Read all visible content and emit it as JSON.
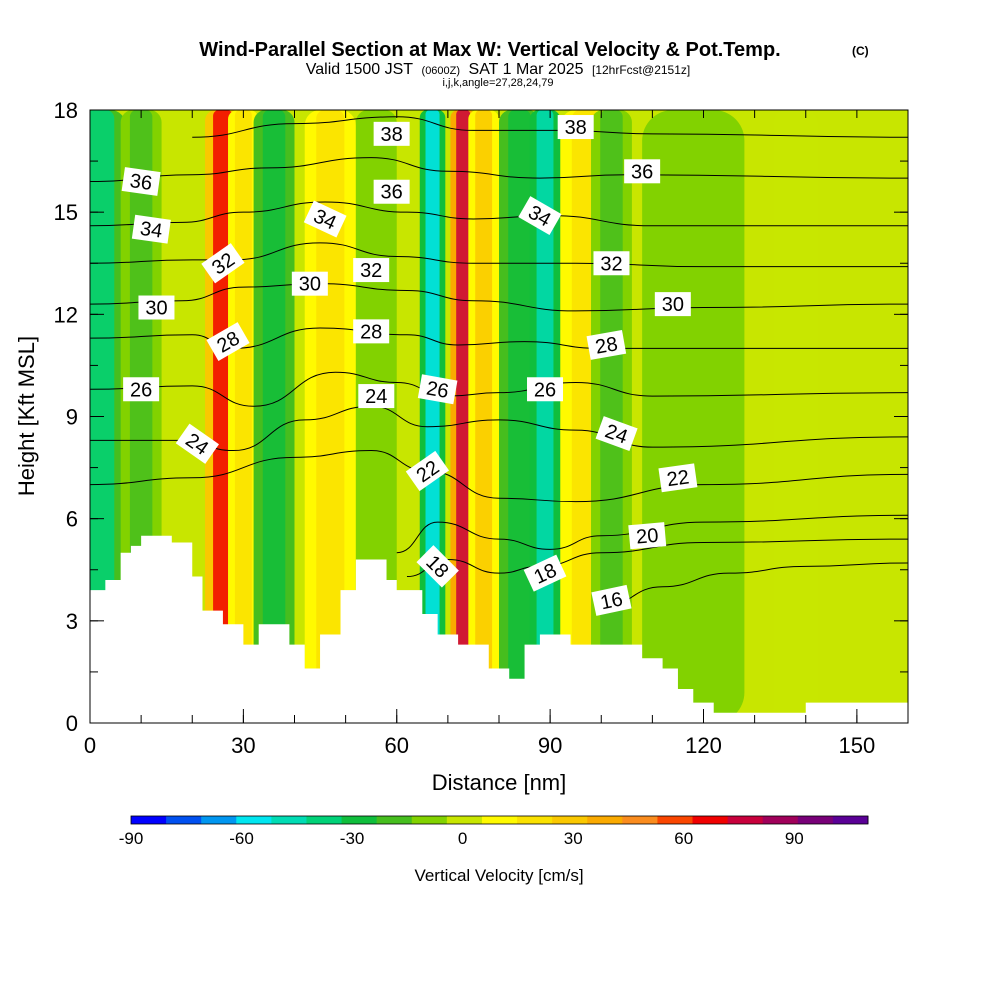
{
  "chart_data": {
    "type": "heatmap",
    "title": "Wind-Parallel Section at Max W: Vertical Velocity & Pot.Temp.",
    "title_mark": "(C)",
    "subtitle": {
      "prefix": "Valid 1500 JST",
      "utc": "(0600Z)",
      "date": "SAT 1 Mar 2025",
      "fcst": "[12hrFcst@2151z]"
    },
    "indices": "i,j,k,angle=27,28,24,79",
    "xlabel": "Distance [nm]",
    "ylabel": "Height [Kft MSL]",
    "xlim": [
      0,
      160
    ],
    "ylim": [
      0,
      18
    ],
    "x_ticks": [
      "0",
      "30",
      "60",
      "90",
      "120",
      "150"
    ],
    "y_ticks": [
      "0",
      "3",
      "6",
      "9",
      "12",
      "15",
      "18"
    ],
    "colorbar": {
      "label": "Vertical Velocity [cm/s]",
      "range": [
        -90,
        110
      ],
      "step": 10,
      "tick_labels": [
        "-90",
        "-60",
        "-30",
        "0",
        "30",
        "60",
        "90"
      ],
      "colors": [
        "#0000ff",
        "#0050f0",
        "#0096f0",
        "#00e6f0",
        "#00dcb4",
        "#00d278",
        "#10be3c",
        "#46be1e",
        "#82d200",
        "#c8e600",
        "#fffa00",
        "#fae100",
        "#fac800",
        "#faaa00",
        "#fa8c1e",
        "#fa4600",
        "#f00000",
        "#c8003c",
        "#a0005a",
        "#780078",
        "#5a0096"
      ]
    },
    "terrain": [
      [
        0,
        3.9
      ],
      [
        3,
        3.9
      ],
      [
        3,
        4.2
      ],
      [
        6,
        4.2
      ],
      [
        6,
        5
      ],
      [
        8,
        5
      ],
      [
        8,
        5.2
      ],
      [
        10,
        5.2
      ],
      [
        10,
        5.5
      ],
      [
        16,
        5.5
      ],
      [
        16,
        5.3
      ],
      [
        20,
        5.3
      ],
      [
        20,
        4.3
      ],
      [
        22,
        4.3
      ],
      [
        22,
        3.3
      ],
      [
        26,
        3.3
      ],
      [
        26,
        2.9
      ],
      [
        30,
        2.9
      ],
      [
        30,
        2.3
      ],
      [
        33,
        2.3
      ],
      [
        33,
        2.9
      ],
      [
        39,
        2.9
      ],
      [
        39,
        2.3
      ],
      [
        42,
        2.3
      ],
      [
        42,
        1.6
      ],
      [
        45,
        1.6
      ],
      [
        45,
        2.6
      ],
      [
        49,
        2.6
      ],
      [
        49,
        3.9
      ],
      [
        52,
        3.9
      ],
      [
        52,
        4.8
      ],
      [
        58,
        4.8
      ],
      [
        58,
        4.2
      ],
      [
        60,
        4.2
      ],
      [
        60,
        3.9
      ],
      [
        65,
        3.9
      ],
      [
        65,
        3.2
      ],
      [
        68,
        3.2
      ],
      [
        68,
        2.6
      ],
      [
        72,
        2.6
      ],
      [
        72,
        2.3
      ],
      [
        78,
        2.3
      ],
      [
        78,
        1.6
      ],
      [
        82,
        1.6
      ],
      [
        82,
        1.3
      ],
      [
        85,
        1.3
      ],
      [
        85,
        2.3
      ],
      [
        88,
        2.3
      ],
      [
        88,
        2.6
      ],
      [
        94,
        2.6
      ],
      [
        94,
        2.3
      ],
      [
        108,
        2.3
      ],
      [
        108,
        1.9
      ],
      [
        112,
        1.9
      ],
      [
        112,
        1.6
      ],
      [
        115,
        1.6
      ],
      [
        115,
        1.0
      ],
      [
        118,
        1.0
      ],
      [
        118,
        0.6
      ],
      [
        122,
        0.6
      ],
      [
        122,
        0.3
      ],
      [
        140,
        0.3
      ],
      [
        140,
        0.6
      ],
      [
        160,
        0.6
      ]
    ],
    "w_bands": [
      {
        "x": 2,
        "w": 5,
        "v": -40
      },
      {
        "x": 10,
        "w": 4,
        "v": -15
      },
      {
        "x": 26,
        "w": 3.5,
        "v": 70
      },
      {
        "x": 30,
        "w": 3,
        "v": 20
      },
      {
        "x": 36,
        "w": 4,
        "v": -25
      },
      {
        "x": 47,
        "w": 5,
        "v": 25
      },
      {
        "x": 56,
        "w": 4,
        "v": -10
      },
      {
        "x": 67,
        "w": 2.5,
        "v": -60
      },
      {
        "x": 73,
        "w": 2.5,
        "v": 80
      },
      {
        "x": 77,
        "w": 3,
        "v": 30
      },
      {
        "x": 84,
        "w": 4,
        "v": -25
      },
      {
        "x": 89,
        "w": 3,
        "v": -50
      },
      {
        "x": 97,
        "w": 5,
        "v": 20
      },
      {
        "x": 102,
        "w": 4,
        "v": -20
      },
      {
        "x": 118,
        "w": 10,
        "v": -5
      },
      {
        "x": 138,
        "w": 8,
        "v": 8
      }
    ],
    "theta_contours": [
      {
        "value": 16,
        "label": "16",
        "points": [
          [
            100,
            3.4
          ],
          [
            112,
            4.0
          ],
          [
            125,
            4.4
          ],
          [
            140,
            4.6
          ],
          [
            160,
            4.7
          ]
        ]
      },
      {
        "value": 18,
        "label": "18",
        "points": [
          [
            62,
            4.3
          ],
          [
            70,
            4.8
          ],
          [
            80,
            4.4
          ],
          [
            88,
            4.6
          ],
          [
            100,
            5.0
          ],
          [
            120,
            5.3
          ],
          [
            160,
            5.4
          ]
        ]
      },
      {
        "value": 20,
        "label": "20",
        "points": [
          [
            60,
            5.0
          ],
          [
            68,
            5.9
          ],
          [
            80,
            5.4
          ],
          [
            90,
            5.1
          ],
          [
            100,
            5.5
          ],
          [
            120,
            5.9
          ],
          [
            160,
            6.1
          ]
        ]
      },
      {
        "value": 22,
        "label": "22",
        "points": [
          [
            0,
            7.0
          ],
          [
            20,
            7.2
          ],
          [
            40,
            7.8
          ],
          [
            55,
            8.0
          ],
          [
            66,
            7.4
          ],
          [
            80,
            6.6
          ],
          [
            95,
            6.5
          ],
          [
            120,
            7.0
          ],
          [
            160,
            7.3
          ]
        ]
      },
      {
        "value": 24,
        "label": "24",
        "points": [
          [
            0,
            8.3
          ],
          [
            18,
            8.3
          ],
          [
            28,
            8.0
          ],
          [
            42,
            8.9
          ],
          [
            55,
            9.3
          ],
          [
            66,
            8.7
          ],
          [
            80,
            8.9
          ],
          [
            95,
            8.6
          ],
          [
            110,
            8.1
          ],
          [
            160,
            8.4
          ]
        ]
      },
      {
        "value": 26,
        "label": "26",
        "points": [
          [
            0,
            9.8
          ],
          [
            20,
            9.9
          ],
          [
            32,
            9.3
          ],
          [
            48,
            10.3
          ],
          [
            60,
            10.0
          ],
          [
            70,
            9.6
          ],
          [
            80,
            9.7
          ],
          [
            95,
            10.0
          ],
          [
            110,
            9.6
          ],
          [
            160,
            9.7
          ]
        ]
      },
      {
        "value": 28,
        "label": "28",
        "points": [
          [
            0,
            11.3
          ],
          [
            20,
            11.4
          ],
          [
            28,
            11.0
          ],
          [
            45,
            11.6
          ],
          [
            62,
            11.4
          ],
          [
            72,
            11.1
          ],
          [
            85,
            11.2
          ],
          [
            100,
            11.0
          ],
          [
            120,
            11.0
          ],
          [
            160,
            11.0
          ]
        ]
      },
      {
        "value": 30,
        "label": "30",
        "points": [
          [
            0,
            12.3
          ],
          [
            18,
            12.4
          ],
          [
            30,
            12.8
          ],
          [
            45,
            12.9
          ],
          [
            62,
            12.7
          ],
          [
            75,
            12.4
          ],
          [
            95,
            12.1
          ],
          [
            120,
            12.2
          ],
          [
            160,
            12.3
          ]
        ]
      },
      {
        "value": 32,
        "label": "32",
        "points": [
          [
            0,
            13.5
          ],
          [
            20,
            13.6
          ],
          [
            28,
            13.6
          ],
          [
            45,
            14.1
          ],
          [
            60,
            13.7
          ],
          [
            75,
            13.5
          ],
          [
            95,
            13.5
          ],
          [
            120,
            13.4
          ],
          [
            160,
            13.4
          ]
        ]
      },
      {
        "value": 34,
        "label": "34",
        "points": [
          [
            0,
            14.6
          ],
          [
            18,
            14.7
          ],
          [
            30,
            15.0
          ],
          [
            46,
            15.3
          ],
          [
            62,
            15.0
          ],
          [
            75,
            14.8
          ],
          [
            90,
            14.9
          ],
          [
            110,
            14.6
          ],
          [
            160,
            14.6
          ]
        ]
      },
      {
        "value": 36,
        "label": "36",
        "points": [
          [
            0,
            15.9
          ],
          [
            20,
            16.1
          ],
          [
            35,
            16.3
          ],
          [
            55,
            16.6
          ],
          [
            70,
            16.2
          ],
          [
            88,
            16.0
          ],
          [
            105,
            16.1
          ],
          [
            160,
            16.0
          ]
        ]
      },
      {
        "value": 38,
        "label": "38",
        "points": [
          [
            20,
            17.2
          ],
          [
            40,
            17.6
          ],
          [
            60,
            17.8
          ],
          [
            75,
            17.4
          ],
          [
            92,
            17.4
          ],
          [
            110,
            17.3
          ],
          [
            160,
            17.2
          ]
        ]
      }
    ],
    "labels": [
      {
        "text": "38",
        "x": 59,
        "y": 17.3,
        "rot": 0
      },
      {
        "text": "38",
        "x": 95,
        "y": 17.5,
        "rot": 0
      },
      {
        "text": "36",
        "x": 10,
        "y": 15.9,
        "rot": 8
      },
      {
        "text": "36",
        "x": 59,
        "y": 15.6,
        "rot": 0
      },
      {
        "text": "36",
        "x": 108,
        "y": 16.2,
        "rot": 0
      },
      {
        "text": "34",
        "x": 12,
        "y": 14.5,
        "rot": 8
      },
      {
        "text": "34",
        "x": 46,
        "y": 14.8,
        "rot": 25
      },
      {
        "text": "34",
        "x": 88,
        "y": 14.9,
        "rot": 30
      },
      {
        "text": "32",
        "x": 26,
        "y": 13.5,
        "rot": -35
      },
      {
        "text": "32",
        "x": 55,
        "y": 13.3,
        "rot": 0
      },
      {
        "text": "32",
        "x": 102,
        "y": 13.5,
        "rot": 0
      },
      {
        "text": "30",
        "x": 13,
        "y": 12.2,
        "rot": 0
      },
      {
        "text": "30",
        "x": 43,
        "y": 12.9,
        "rot": 0
      },
      {
        "text": "30",
        "x": 114,
        "y": 12.3,
        "rot": 0
      },
      {
        "text": "28",
        "x": 27,
        "y": 11.2,
        "rot": -30
      },
      {
        "text": "28",
        "x": 55,
        "y": 11.5,
        "rot": 0
      },
      {
        "text": "28",
        "x": 101,
        "y": 11.1,
        "rot": -10
      },
      {
        "text": "26",
        "x": 10,
        "y": 9.8,
        "rot": 0
      },
      {
        "text": "26",
        "x": 68,
        "y": 9.8,
        "rot": 10
      },
      {
        "text": "26",
        "x": 89,
        "y": 9.8,
        "rot": 0
      },
      {
        "text": "24",
        "x": 21,
        "y": 8.2,
        "rot": 35
      },
      {
        "text": "24",
        "x": 56,
        "y": 9.6,
        "rot": 0
      },
      {
        "text": "24",
        "x": 103,
        "y": 8.5,
        "rot": 20
      },
      {
        "text": "22",
        "x": 66,
        "y": 7.4,
        "rot": -35
      },
      {
        "text": "22",
        "x": 115,
        "y": 7.2,
        "rot": -8
      },
      {
        "text": "20",
        "x": 109,
        "y": 5.5,
        "rot": -5
      },
      {
        "text": "18",
        "x": 68,
        "y": 4.6,
        "rot": 45
      },
      {
        "text": "18",
        "x": 89,
        "y": 4.4,
        "rot": -25
      },
      {
        "text": "16",
        "x": 102,
        "y": 3.6,
        "rot": -12
      }
    ]
  }
}
